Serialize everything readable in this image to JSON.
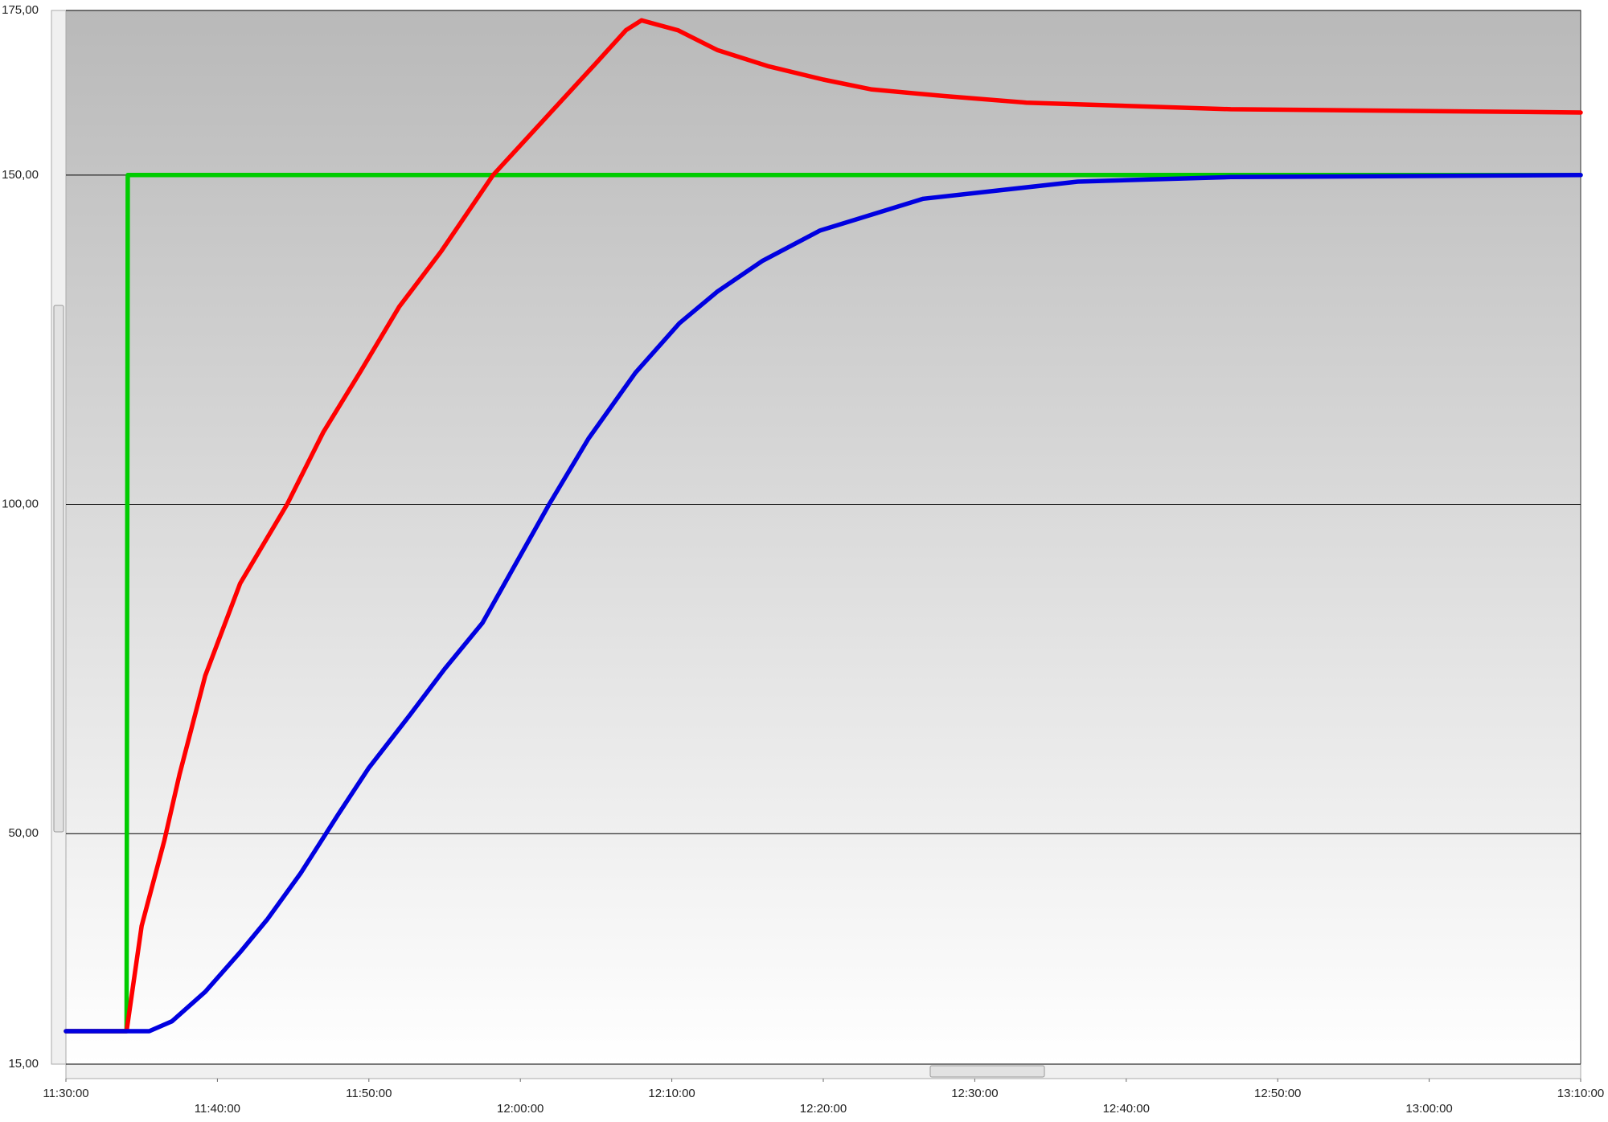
{
  "chart_data": {
    "type": "line",
    "xlim": [
      "11:30:00",
      "13:10:00"
    ],
    "xticks": [
      "11:30:00",
      "11:40:00",
      "11:50:00",
      "12:00:00",
      "12:10:00",
      "12:20:00",
      "12:30:00",
      "12:40:00",
      "12:50:00",
      "13:00:00",
      "13:10:00"
    ],
    "ylim": [
      15,
      175
    ],
    "yticks": [
      {
        "value": 15,
        "label": "15,00"
      },
      {
        "value": 50,
        "label": "50,00"
      },
      {
        "value": 100,
        "label": "100,00"
      },
      {
        "value": 150,
        "label": "150,00"
      },
      {
        "value": 175,
        "label": "175,00"
      }
    ],
    "grid": true,
    "series": [
      {
        "color": "#00cc00",
        "x": [
          "11:30:00",
          "11:34:00",
          "11:34:05",
          "13:10:00"
        ],
        "values": [
          20,
          20,
          150,
          150
        ]
      },
      {
        "color": "#ff0000",
        "x": [
          "11:30:00",
          "11:34:00",
          "11:35:00",
          "11:36:30",
          "11:37:30",
          "11:39:12",
          "11:41:30",
          "11:44:36",
          "11:47:00",
          "11:49:24",
          "11:52:00",
          "11:54:48",
          "11:58:12",
          "12:02:12",
          "12:05:00",
          "12:06:58",
          "12:08:00",
          "12:10:24",
          "12:13:00",
          "12:16:24",
          "12:20:00",
          "12:23:12",
          "12:28:00",
          "12:33:24",
          "12:46:54",
          "13:10:00"
        ],
        "values": [
          20,
          20,
          36,
          49,
          59,
          74,
          88,
          100,
          111,
          120,
          130,
          138.5,
          150,
          160,
          167,
          172,
          173.5,
          172,
          169,
          166.5,
          164.5,
          163,
          162,
          161,
          160,
          159.5
        ]
      },
      {
        "color": "#0000e0",
        "x": [
          "11:30:00",
          "11:35:30",
          "11:37:00",
          "11:39:12",
          "11:41:30",
          "11:43:18",
          "11:45:30",
          "11:48:00",
          "11:50:00",
          "11:52:42",
          "11:55:00",
          "11:57:30",
          "12:01:54",
          "12:04:30",
          "12:07:36",
          "12:10:30",
          "12:13:00",
          "12:16:00",
          "12:19:48",
          "12:26:36",
          "12:36:48",
          "12:46:54",
          "13:10:00"
        ],
        "values": [
          20,
          20,
          21.5,
          26,
          32,
          37,
          44,
          53,
          60,
          68,
          75,
          82,
          100,
          110,
          120,
          127.5,
          132.3,
          137,
          141.6,
          146.4,
          149,
          149.7,
          150
        ]
      }
    ]
  }
}
